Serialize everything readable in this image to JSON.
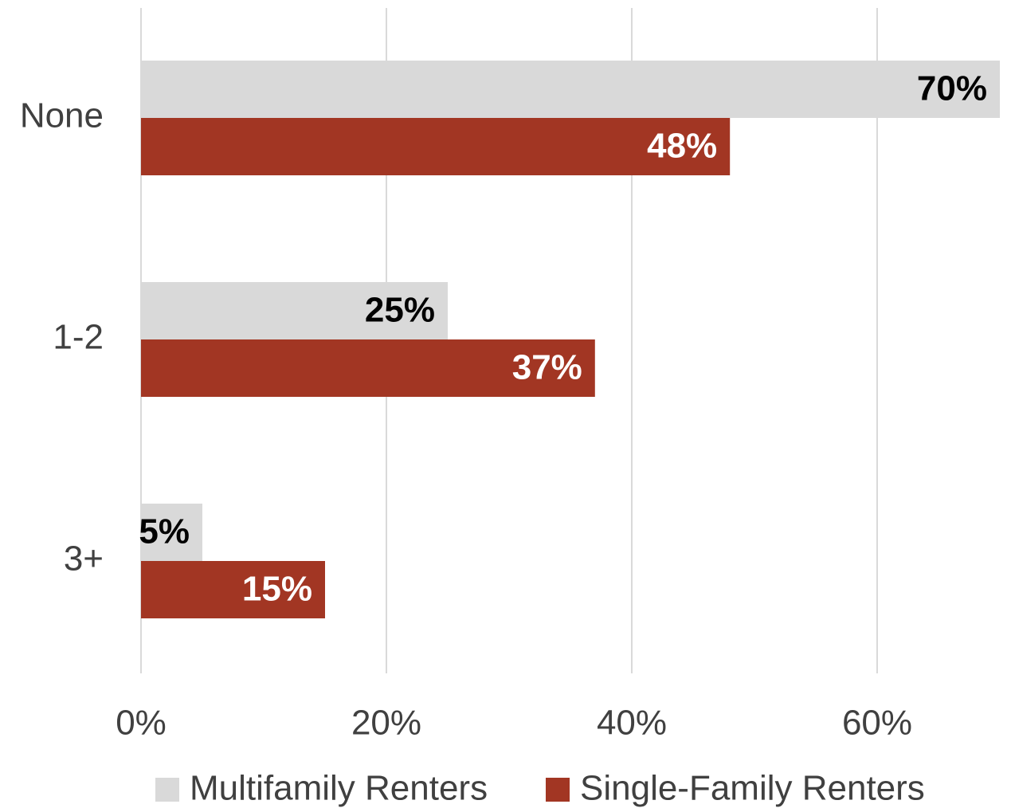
{
  "chart_data": {
    "type": "hbar",
    "categories": [
      "None",
      "1-2",
      "3+"
    ],
    "series": [
      {
        "name": "Multifamily Renters",
        "color": "#d9d9d9",
        "label_color": "#000000",
        "values": [
          70,
          25,
          5
        ],
        "value_labels": [
          "70%",
          "25%",
          "5%"
        ]
      },
      {
        "name": "Single-Family Renters",
        "color": "#a23623",
        "label_color": "#ffffff",
        "values": [
          48,
          37,
          15
        ],
        "value_labels": [
          "48%",
          "37%",
          "15%"
        ]
      }
    ],
    "xlim": [
      0,
      70
    ],
    "xticks": [
      {
        "value": 0,
        "label": "0%"
      },
      {
        "value": 20,
        "label": "20%"
      },
      {
        "value": 40,
        "label": "40%"
      },
      {
        "value": 60,
        "label": "60%"
      }
    ],
    "grid": true,
    "legend": "bottom"
  }
}
